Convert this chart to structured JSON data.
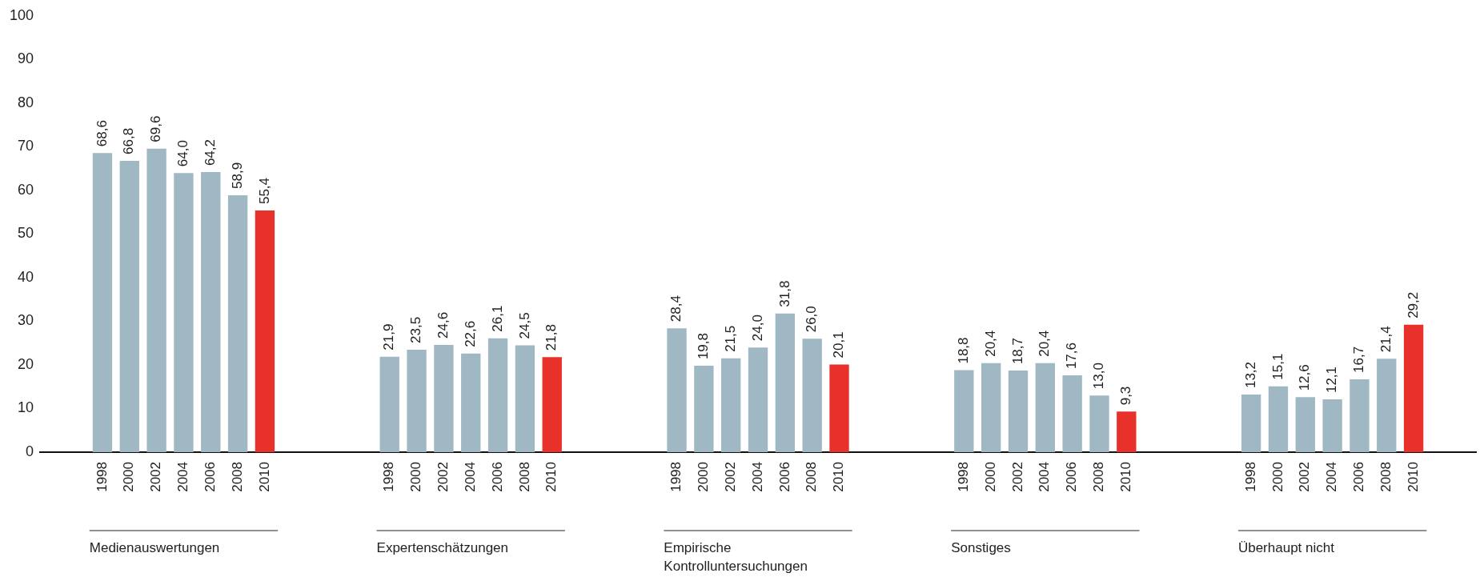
{
  "chart_data": {
    "type": "bar",
    "categories": [
      "Medienauswertungen",
      "Expertenschätzungen",
      "Empirische Kontrolluntersuchungen",
      "Sonstiges",
      "Überhaupt nicht"
    ],
    "series": [
      {
        "name": "1998",
        "color": "#9fb8c4",
        "values": [
          68.6,
          21.9,
          28.4,
          18.8,
          13.2
        ],
        "value_labels": [
          "68,6",
          "21,9",
          "28,4",
          "18,8",
          "13,2"
        ]
      },
      {
        "name": "2000",
        "color": "#9fb8c4",
        "values": [
          66.8,
          23.5,
          19.8,
          20.4,
          15.1
        ],
        "value_labels": [
          "66,8",
          "23,5",
          "19,8",
          "20,4",
          "15,1"
        ]
      },
      {
        "name": "2002",
        "color": "#9fb8c4",
        "values": [
          69.6,
          24.6,
          21.5,
          18.7,
          12.6
        ],
        "value_labels": [
          "69,6",
          "24,6",
          "21,5",
          "18,7",
          "12,6"
        ]
      },
      {
        "name": "2004",
        "color": "#9fb8c4",
        "values": [
          64.0,
          22.6,
          24.0,
          20.4,
          12.1
        ],
        "value_labels": [
          "64,0",
          "22,6",
          "24,0",
          "20,4",
          "12,1"
        ]
      },
      {
        "name": "2006",
        "color": "#9fb8c4",
        "values": [
          64.2,
          26.1,
          31.8,
          17.6,
          16.7
        ],
        "value_labels": [
          "64,2",
          "26,1",
          "31,8",
          "17,6",
          "16,7"
        ]
      },
      {
        "name": "2008",
        "color": "#9fb8c4",
        "values": [
          58.9,
          24.5,
          26.0,
          13.0,
          21.4
        ],
        "value_labels": [
          "58,9",
          "24,5",
          "26,0",
          "13,0",
          "21,4"
        ]
      },
      {
        "name": "2010",
        "color": "#e8312a",
        "values": [
          55.4,
          21.8,
          20.1,
          9.3,
          29.2
        ],
        "value_labels": [
          "55,4",
          "21,8",
          "20,1",
          "9,3",
          "29,2"
        ]
      }
    ],
    "ylim": [
      0,
      100
    ],
    "yticks": [
      0,
      10,
      20,
      30,
      40,
      50,
      60,
      70,
      80,
      90,
      100
    ],
    "grid": false,
    "legend": false
  }
}
